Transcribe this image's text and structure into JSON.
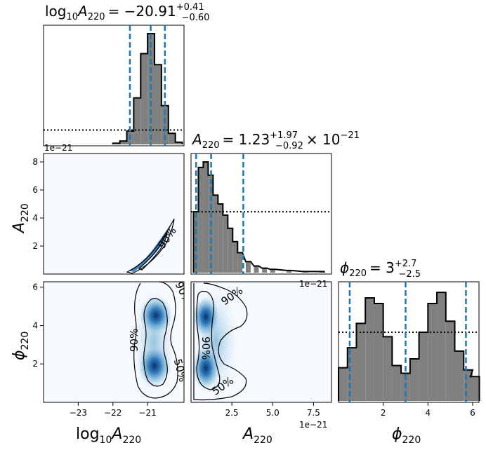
{
  "chart_data": {
    "type": "corner_plot",
    "parameters": [
      {
        "key": "logA",
        "base": "log",
        "sub": "10",
        "sym": "A",
        "symsub": "220"
      },
      {
        "key": "A",
        "sym": "A",
        "symsub": "220",
        "offset": "1e-21"
      },
      {
        "key": "phi",
        "sym": "ϕ",
        "symsub": "220"
      }
    ],
    "titles": {
      "logA": {
        "prefix": "log",
        "sub": "10",
        "sym": "A",
        "symsub": "220",
        "value": "= −20.91",
        "plus": "+0.41",
        "minus": "−0.60"
      },
      "A": {
        "sym": "A",
        "symsub": "220",
        "value": "= 1.23",
        "plus": "+1.97",
        "minus": "−0.92",
        "suffix": "× 10",
        "exp": "−21"
      },
      "phi": {
        "sym": "ϕ",
        "symsub": "220",
        "value": "= 3",
        "plus": "+2.7",
        "minus": "−2.5"
      }
    },
    "axes": {
      "logA": {
        "range": [
          -24.0,
          -19.95
        ],
        "ticks": [
          -23,
          -22,
          -21
        ],
        "tick_labels": [
          "−23",
          "−22",
          "−21"
        ]
      },
      "A": {
        "range": [
          0,
          8.6
        ],
        "ticks_x": [
          2.5,
          5.0,
          7.5
        ],
        "tick_labels_x": [
          "2.5",
          "5.0",
          "7.5"
        ],
        "ticks_y": [
          2,
          4,
          6,
          8
        ],
        "tick_labels_y": [
          "2",
          "4",
          "6",
          "8"
        ],
        "offset_label": "1e−21"
      },
      "phi": {
        "range": [
          0,
          6.283
        ],
        "ticks_x": [
          2,
          4,
          6
        ],
        "tick_labels_x": [
          "2",
          "4",
          "6"
        ],
        "ticks_y": [
          2,
          4,
          6
        ],
        "tick_labels_y": [
          "2",
          "4",
          "6"
        ]
      }
    },
    "hist_logA": {
      "x": [
        -21.9,
        -21.7,
        -21.5,
        -21.3,
        -21.1,
        -20.9,
        -20.7,
        -20.5,
        -20.3,
        -20.1
      ],
      "values": [
        0.01,
        0.03,
        0.12,
        0.42,
        0.82,
        1.0,
        0.72,
        0.35,
        0.1,
        0.02
      ],
      "prior_level": 0.13,
      "quantiles": [
        -21.51,
        -20.91,
        -20.5
      ]
    },
    "hist_A": {
      "x": [
        0.3,
        0.6,
        0.9,
        1.2,
        1.5,
        1.8,
        2.1,
        2.4,
        2.7,
        3.0,
        3.5,
        4.0,
        4.5,
        5.0,
        6.0,
        7.0,
        8.0
      ],
      "values": [
        0.55,
        0.95,
        1.0,
        0.88,
        0.7,
        0.62,
        0.52,
        0.4,
        0.28,
        0.18,
        0.1,
        0.06,
        0.04,
        0.03,
        0.02,
        0.01,
        0.01
      ],
      "prior_level": 0.55,
      "quantiles": [
        0.31,
        1.23,
        3.2
      ]
    },
    "hist_phi": {
      "x": [
        0.2,
        0.6,
        1.0,
        1.4,
        1.8,
        2.2,
        2.6,
        3.0,
        3.4,
        3.8,
        4.2,
        4.6,
        5.0,
        5.4,
        5.8,
        6.1
      ],
      "values": [
        0.3,
        0.48,
        0.7,
        0.93,
        0.88,
        0.58,
        0.32,
        0.25,
        0.38,
        0.62,
        0.88,
        0.98,
        0.72,
        0.45,
        0.28,
        0.22
      ],
      "prior_level": 0.62,
      "quantiles": [
        0.5,
        3.0,
        5.7
      ]
    },
    "contour_labels": [
      "90%",
      "90%",
      "50%",
      "90%",
      "90%",
      "50%"
    ]
  }
}
